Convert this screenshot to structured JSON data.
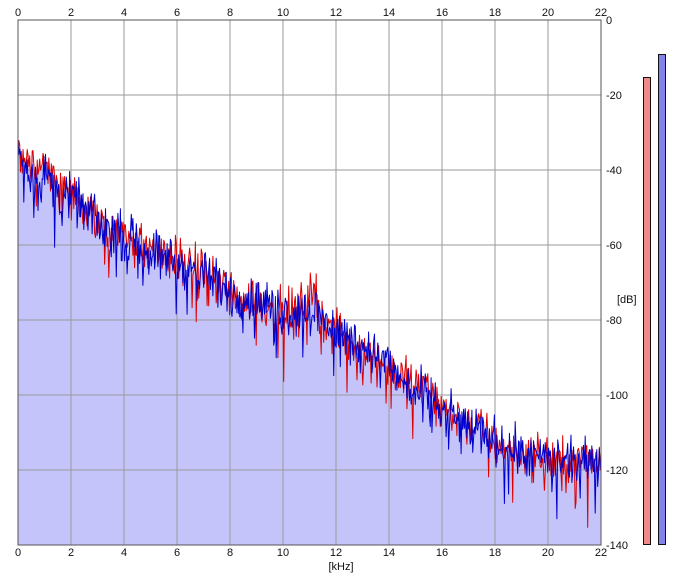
{
  "colors": {
    "left_channel": "#dd0000",
    "right_channel": "#0000cc",
    "fill": "#c4c4fa",
    "grid": "#9a9a9a",
    "meter_left": "#f28888",
    "meter_right": "#8383ea"
  },
  "meters": {
    "left_level": 0.891,
    "right_level": 0.936
  },
  "chart_data": {
    "type": "line",
    "title": "",
    "xlabel": "[kHz]",
    "ylabel": "[dB]",
    "xlim": [
      0,
      22
    ],
    "ylim": [
      -140,
      0
    ],
    "x_ticks": [
      "0",
      "2",
      "4",
      "6",
      "8",
      "10",
      "12",
      "14",
      "16",
      "18",
      "20",
      "22"
    ],
    "y_ticks": [
      "0",
      "-20",
      "-40",
      "-60",
      "-80",
      "-100",
      "-120",
      "-140"
    ],
    "grid": true,
    "fill_under": true,
    "series": [
      {
        "color": "#dd0000",
        "x": [
          0,
          0.25,
          0.5,
          0.75,
          1,
          1.5,
          2,
          2.5,
          3,
          3.5,
          4,
          4.5,
          5,
          5.5,
          6,
          6.5,
          7,
          7.5,
          8,
          8.5,
          9,
          9.5,
          10,
          10.5,
          11,
          11.25,
          11.5,
          12,
          12.5,
          13,
          13.5,
          14,
          14.5,
          15,
          15.5,
          16,
          16.5,
          17,
          17.5,
          18,
          18.5,
          19,
          19.5,
          20,
          20.5,
          21,
          21.5,
          22
        ],
        "y": [
          -35,
          -36,
          -38,
          -40,
          -38,
          -44,
          -47,
          -51,
          -53,
          -55,
          -57,
          -60,
          -61,
          -63,
          -64,
          -67,
          -67,
          -70,
          -72,
          -75,
          -74,
          -77,
          -78,
          -77,
          -74,
          -73,
          -80,
          -84,
          -86,
          -88,
          -90,
          -93,
          -95,
          -98,
          -96,
          -103,
          -106,
          -108,
          -109,
          -113,
          -114,
          -115,
          -117,
          -117,
          -118,
          -118,
          -117,
          -117
        ]
      },
      {
        "color": "#0000cc",
        "x": [
          0,
          0.25,
          0.5,
          0.75,
          1,
          1.5,
          2,
          2.5,
          3,
          3.5,
          4,
          4.5,
          5,
          5.5,
          6,
          6.5,
          7,
          7.5,
          8,
          8.5,
          9,
          9.5,
          10,
          10.5,
          11,
          11.25,
          11.5,
          12,
          12.5,
          13,
          13.5,
          14,
          14.5,
          15,
          15.5,
          16,
          16.5,
          17,
          17.5,
          18,
          18.5,
          19,
          19.5,
          20,
          20.5,
          21,
          21.5,
          22
        ],
        "y": [
          -33,
          -38,
          -40,
          -42,
          -41,
          -45,
          -48,
          -50,
          -54,
          -56,
          -58,
          -59,
          -62,
          -62,
          -65,
          -66,
          -68,
          -70,
          -73,
          -74,
          -75,
          -76,
          -78,
          -78,
          -78,
          -77,
          -80,
          -82,
          -85,
          -87,
          -89,
          -92,
          -96,
          -100,
          -101,
          -104,
          -107,
          -108,
          -110,
          -112,
          -114,
          -115,
          -117,
          -117,
          -118,
          -118,
          -118,
          -116
        ]
      }
    ]
  }
}
